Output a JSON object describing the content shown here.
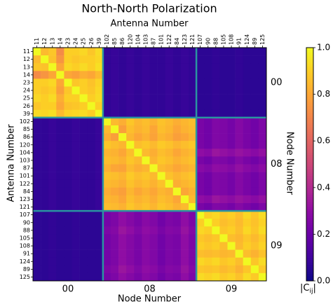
{
  "chart_data": {
    "type": "heatmap",
    "title": "North-North Polarization",
    "x_label_top": "Antenna Number",
    "y_label": "Antenna Number",
    "x_label_bottom": "Node Number",
    "y2_label": "Node Number",
    "colorbar_label": {
      "base": "|C",
      "sub": "ij",
      "end": "|"
    },
    "colormap": "plasma",
    "boundary_color": "#2a95a0",
    "groups": [
      {
        "node": "00",
        "antennas": [
          "11",
          "12",
          "13",
          "14",
          "23",
          "24",
          "25",
          "26",
          "39"
        ]
      },
      {
        "node": "08",
        "antennas": [
          "102",
          "85",
          "86",
          "120",
          "104",
          "103",
          "87",
          "101",
          "122",
          "84",
          "123",
          "121"
        ]
      },
      {
        "node": "09",
        "antennas": [
          "107",
          "90",
          "88",
          "105",
          "108",
          "91",
          "124",
          "89",
          "125"
        ]
      }
    ],
    "zlim": [
      0,
      1
    ],
    "zticks": [
      {
        "value": 0,
        "label": "0.0"
      },
      {
        "value": 0.2,
        "label": "0.2"
      },
      {
        "value": 0.4,
        "label": "0.4"
      },
      {
        "value": 0.6,
        "label": "0.6"
      },
      {
        "value": 0.8,
        "label": "0.8"
      },
      {
        "value": 1,
        "label": "1.0"
      }
    ],
    "values": [
      [
        1,
        0.85,
        0.88,
        0.72,
        0.9,
        0.9,
        0.92,
        0.88,
        0.93,
        0.07,
        0.08,
        0.07,
        0.08,
        0.07,
        0.08,
        0.07,
        0.07,
        0.08,
        0.07,
        0.08,
        0.07,
        0.06,
        0.06,
        0.07,
        0.06,
        0.06,
        0.07,
        0.06,
        0.06,
        0.06
      ],
      [
        0.85,
        1,
        0.87,
        0.75,
        0.9,
        0.88,
        0.9,
        0.9,
        0.92,
        0.07,
        0.08,
        0.07,
        0.08,
        0.07,
        0.08,
        0.07,
        0.07,
        0.08,
        0.07,
        0.08,
        0.07,
        0.06,
        0.06,
        0.07,
        0.06,
        0.06,
        0.07,
        0.06,
        0.06,
        0.06
      ],
      [
        0.88,
        0.87,
        1,
        0.8,
        0.92,
        0.9,
        0.93,
        0.9,
        0.94,
        0.07,
        0.08,
        0.07,
        0.08,
        0.07,
        0.08,
        0.07,
        0.07,
        0.08,
        0.07,
        0.08,
        0.07,
        0.06,
        0.06,
        0.07,
        0.06,
        0.06,
        0.07,
        0.06,
        0.06,
        0.06
      ],
      [
        0.72,
        0.75,
        0.8,
        1,
        0.8,
        0.78,
        0.82,
        0.8,
        0.85,
        0.07,
        0.08,
        0.07,
        0.08,
        0.07,
        0.08,
        0.07,
        0.07,
        0.08,
        0.07,
        0.08,
        0.07,
        0.06,
        0.06,
        0.07,
        0.06,
        0.06,
        0.07,
        0.06,
        0.06,
        0.06
      ],
      [
        0.9,
        0.9,
        0.92,
        0.8,
        1,
        0.88,
        0.9,
        0.87,
        0.91,
        0.07,
        0.08,
        0.07,
        0.08,
        0.07,
        0.08,
        0.07,
        0.07,
        0.08,
        0.07,
        0.08,
        0.07,
        0.06,
        0.06,
        0.07,
        0.06,
        0.06,
        0.07,
        0.06,
        0.06,
        0.06
      ],
      [
        0.9,
        0.88,
        0.9,
        0.78,
        0.88,
        1,
        0.9,
        0.88,
        0.92,
        0.07,
        0.08,
        0.07,
        0.08,
        0.07,
        0.08,
        0.07,
        0.07,
        0.08,
        0.07,
        0.08,
        0.07,
        0.06,
        0.06,
        0.07,
        0.06,
        0.06,
        0.07,
        0.06,
        0.06,
        0.06
      ],
      [
        0.92,
        0.9,
        0.93,
        0.82,
        0.9,
        0.9,
        1,
        0.9,
        0.93,
        0.07,
        0.08,
        0.07,
        0.08,
        0.07,
        0.08,
        0.07,
        0.07,
        0.08,
        0.07,
        0.08,
        0.07,
        0.06,
        0.06,
        0.07,
        0.06,
        0.06,
        0.07,
        0.06,
        0.06,
        0.06
      ],
      [
        0.88,
        0.9,
        0.9,
        0.8,
        0.87,
        0.88,
        0.9,
        1,
        0.9,
        0.07,
        0.08,
        0.07,
        0.08,
        0.07,
        0.08,
        0.07,
        0.07,
        0.08,
        0.07,
        0.08,
        0.07,
        0.06,
        0.06,
        0.07,
        0.06,
        0.06,
        0.07,
        0.06,
        0.06,
        0.06
      ],
      [
        0.93,
        0.92,
        0.94,
        0.85,
        0.91,
        0.92,
        0.93,
        0.9,
        1,
        0.07,
        0.08,
        0.07,
        0.08,
        0.07,
        0.08,
        0.07,
        0.07,
        0.08,
        0.07,
        0.08,
        0.07,
        0.06,
        0.06,
        0.07,
        0.06,
        0.06,
        0.07,
        0.06,
        0.06,
        0.06
      ],
      [
        0.07,
        0.07,
        0.08,
        0.07,
        0.07,
        0.08,
        0.07,
        0.07,
        0.08,
        1,
        0.85,
        0.82,
        0.88,
        0.84,
        0.86,
        0.83,
        0.87,
        0.85,
        0.82,
        0.84,
        0.86,
        0.24,
        0.22,
        0.26,
        0.25,
        0.23,
        0.27,
        0.24,
        0.22,
        0.25
      ],
      [
        0.07,
        0.07,
        0.08,
        0.07,
        0.07,
        0.08,
        0.07,
        0.07,
        0.08,
        0.85,
        1,
        0.78,
        0.86,
        0.83,
        0.85,
        0.8,
        0.86,
        0.84,
        0.8,
        0.83,
        0.85,
        0.24,
        0.22,
        0.26,
        0.25,
        0.23,
        0.27,
        0.24,
        0.22,
        0.25
      ],
      [
        0.07,
        0.07,
        0.08,
        0.07,
        0.07,
        0.08,
        0.07,
        0.07,
        0.08,
        0.82,
        0.78,
        1,
        0.84,
        0.8,
        0.83,
        0.79,
        0.84,
        0.82,
        0.78,
        0.8,
        0.83,
        0.24,
        0.22,
        0.26,
        0.25,
        0.23,
        0.27,
        0.24,
        0.22,
        0.25
      ],
      [
        0.07,
        0.07,
        0.08,
        0.07,
        0.07,
        0.08,
        0.07,
        0.07,
        0.08,
        0.88,
        0.86,
        0.84,
        1,
        0.86,
        0.88,
        0.85,
        0.89,
        0.87,
        0.84,
        0.86,
        0.88,
        0.24,
        0.22,
        0.26,
        0.25,
        0.23,
        0.27,
        0.24,
        0.22,
        0.25
      ],
      [
        0.07,
        0.07,
        0.08,
        0.07,
        0.07,
        0.08,
        0.07,
        0.07,
        0.08,
        0.84,
        0.83,
        0.8,
        0.86,
        1,
        0.85,
        0.82,
        0.86,
        0.84,
        0.8,
        0.83,
        0.85,
        0.3,
        0.28,
        0.33,
        0.31,
        0.29,
        0.32,
        0.3,
        0.28,
        0.31
      ],
      [
        0.07,
        0.07,
        0.08,
        0.07,
        0.07,
        0.08,
        0.07,
        0.07,
        0.08,
        0.86,
        0.85,
        0.83,
        0.88,
        0.85,
        1,
        0.84,
        0.88,
        0.86,
        0.83,
        0.85,
        0.87,
        0.24,
        0.22,
        0.26,
        0.25,
        0.23,
        0.27,
        0.24,
        0.22,
        0.25
      ],
      [
        0.07,
        0.07,
        0.08,
        0.07,
        0.07,
        0.08,
        0.07,
        0.07,
        0.08,
        0.83,
        0.8,
        0.79,
        0.85,
        0.82,
        0.84,
        1,
        0.85,
        0.83,
        0.8,
        0.82,
        0.84,
        0.28,
        0.26,
        0.3,
        0.29,
        0.27,
        0.31,
        0.28,
        0.26,
        0.29
      ],
      [
        0.07,
        0.07,
        0.08,
        0.07,
        0.07,
        0.08,
        0.07,
        0.07,
        0.08,
        0.87,
        0.86,
        0.84,
        0.89,
        0.86,
        0.88,
        0.85,
        1,
        0.87,
        0.84,
        0.86,
        0.88,
        0.24,
        0.22,
        0.26,
        0.25,
        0.23,
        0.27,
        0.24,
        0.22,
        0.25
      ],
      [
        0.07,
        0.07,
        0.08,
        0.07,
        0.07,
        0.08,
        0.07,
        0.07,
        0.08,
        0.85,
        0.84,
        0.82,
        0.87,
        0.84,
        0.86,
        0.83,
        0.87,
        1,
        0.82,
        0.84,
        0.86,
        0.24,
        0.22,
        0.26,
        0.25,
        0.23,
        0.27,
        0.24,
        0.22,
        0.25
      ],
      [
        0.07,
        0.07,
        0.08,
        0.07,
        0.07,
        0.08,
        0.07,
        0.07,
        0.08,
        0.82,
        0.8,
        0.78,
        0.84,
        0.8,
        0.83,
        0.8,
        0.84,
        0.82,
        1,
        0.8,
        0.83,
        0.24,
        0.22,
        0.26,
        0.25,
        0.23,
        0.27,
        0.24,
        0.22,
        0.25
      ],
      [
        0.07,
        0.07,
        0.08,
        0.07,
        0.07,
        0.08,
        0.07,
        0.07,
        0.08,
        0.84,
        0.83,
        0.8,
        0.86,
        0.83,
        0.85,
        0.82,
        0.86,
        0.84,
        0.8,
        1,
        0.85,
        0.3,
        0.28,
        0.33,
        0.31,
        0.29,
        0.32,
        0.3,
        0.28,
        0.31
      ],
      [
        0.07,
        0.07,
        0.08,
        0.07,
        0.07,
        0.08,
        0.07,
        0.07,
        0.08,
        0.86,
        0.85,
        0.83,
        0.88,
        0.85,
        0.87,
        0.84,
        0.88,
        0.86,
        0.83,
        0.85,
        1,
        0.24,
        0.22,
        0.26,
        0.25,
        0.23,
        0.27,
        0.24,
        0.22,
        0.25
      ],
      [
        0.06,
        0.06,
        0.07,
        0.06,
        0.06,
        0.07,
        0.06,
        0.06,
        0.06,
        0.23,
        0.25,
        0.3,
        0.27,
        0.24,
        0.28,
        0.26,
        0.22,
        0.25,
        0.24,
        0.3,
        0.25,
        1,
        0.9,
        0.92,
        0.88,
        0.9,
        0.86,
        0.92,
        0.88,
        0.93
      ],
      [
        0.06,
        0.06,
        0.07,
        0.06,
        0.06,
        0.07,
        0.06,
        0.06,
        0.06,
        0.23,
        0.25,
        0.3,
        0.27,
        0.24,
        0.28,
        0.26,
        0.22,
        0.25,
        0.24,
        0.3,
        0.25,
        0.9,
        1,
        0.9,
        0.86,
        0.88,
        0.85,
        0.9,
        0.87,
        0.91
      ],
      [
        0.06,
        0.06,
        0.07,
        0.06,
        0.06,
        0.07,
        0.06,
        0.06,
        0.06,
        0.25,
        0.27,
        0.33,
        0.3,
        0.26,
        0.3,
        0.28,
        0.24,
        0.27,
        0.26,
        0.32,
        0.27,
        0.92,
        0.9,
        1,
        0.88,
        0.9,
        0.86,
        0.92,
        0.88,
        0.93
      ],
      [
        0.06,
        0.06,
        0.07,
        0.06,
        0.06,
        0.07,
        0.06,
        0.06,
        0.06,
        0.23,
        0.25,
        0.3,
        0.27,
        0.24,
        0.28,
        0.26,
        0.22,
        0.25,
        0.24,
        0.3,
        0.25,
        0.88,
        0.86,
        0.88,
        1,
        0.86,
        0.84,
        0.88,
        0.85,
        0.89
      ],
      [
        0.06,
        0.06,
        0.07,
        0.06,
        0.06,
        0.07,
        0.06,
        0.06,
        0.06,
        0.23,
        0.25,
        0.3,
        0.27,
        0.24,
        0.28,
        0.26,
        0.22,
        0.25,
        0.24,
        0.3,
        0.25,
        0.9,
        0.88,
        0.9,
        0.86,
        1,
        0.85,
        0.9,
        0.87,
        0.91
      ],
      [
        0.06,
        0.06,
        0.07,
        0.06,
        0.06,
        0.07,
        0.06,
        0.06,
        0.06,
        0.23,
        0.25,
        0.3,
        0.27,
        0.24,
        0.28,
        0.26,
        0.22,
        0.25,
        0.24,
        0.3,
        0.25,
        0.86,
        0.85,
        0.86,
        0.84,
        0.85,
        1,
        0.86,
        0.83,
        0.87
      ],
      [
        0.06,
        0.06,
        0.07,
        0.06,
        0.06,
        0.07,
        0.06,
        0.06,
        0.06,
        0.23,
        0.25,
        0.3,
        0.27,
        0.24,
        0.28,
        0.26,
        0.22,
        0.25,
        0.24,
        0.3,
        0.25,
        0.92,
        0.9,
        0.92,
        0.88,
        0.9,
        0.86,
        1,
        0.88,
        0.93
      ],
      [
        0.06,
        0.06,
        0.07,
        0.06,
        0.06,
        0.07,
        0.06,
        0.06,
        0.06,
        0.25,
        0.27,
        0.33,
        0.3,
        0.26,
        0.3,
        0.28,
        0.24,
        0.27,
        0.26,
        0.32,
        0.27,
        0.88,
        0.87,
        0.88,
        0.85,
        0.87,
        0.83,
        0.88,
        1,
        0.89
      ],
      [
        0.06,
        0.06,
        0.07,
        0.06,
        0.06,
        0.07,
        0.06,
        0.06,
        0.06,
        0.23,
        0.25,
        0.3,
        0.27,
        0.24,
        0.28,
        0.26,
        0.22,
        0.25,
        0.24,
        0.3,
        0.25,
        0.93,
        0.91,
        0.93,
        0.89,
        0.91,
        0.87,
        0.93,
        0.89,
        1
      ]
    ]
  }
}
